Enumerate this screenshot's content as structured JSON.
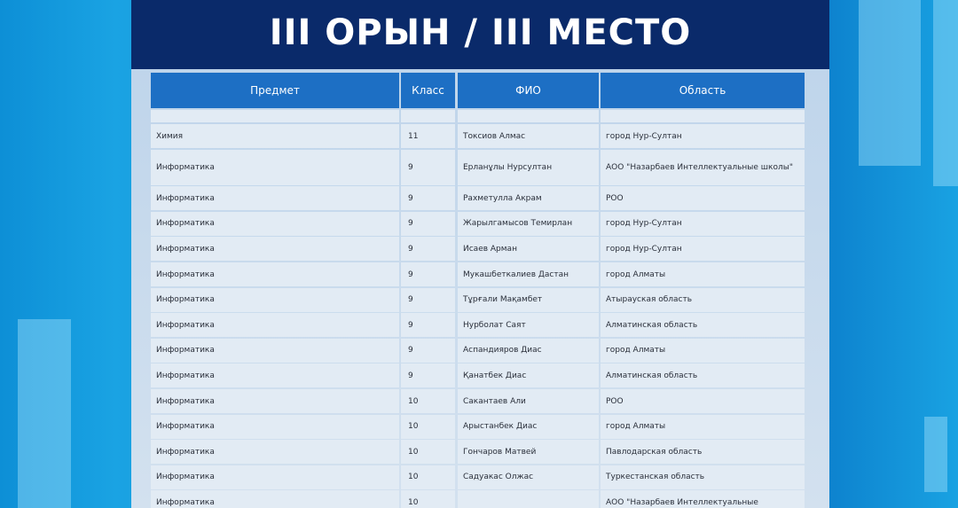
{
  "header": {
    "title": "III ОРЫН / III МЕСТО"
  },
  "table": {
    "columns": [
      "Предмет",
      "Класс",
      "ФИО",
      "Область"
    ],
    "rows": [
      [
        "Химия",
        "11",
        "Токсиов Алмас",
        "город Нур-Султан"
      ],
      [
        "Информатика",
        "9",
        "Ерланұлы Нурсултан",
        "АОО \"Назарбаев Интеллектуальные школы\""
      ],
      [
        "Информатика",
        "9",
        "Рахметулла Акрам",
        "РОО"
      ],
      [
        "Информатика",
        "9",
        "Жарылгамысов Темирлан",
        "город Нур-Султан"
      ],
      [
        "Информатика",
        "9",
        "Исаев Арман",
        "город Нур-Султан"
      ],
      [
        "Информатика",
        "9",
        "Мукашбеткалиев Дастан",
        "город Алматы"
      ],
      [
        "Информатика",
        "9",
        "Тұрғали Мақамбет",
        "Атырауская область"
      ],
      [
        "Информатика",
        "9",
        "Нурболат Саят",
        "Алматинская область"
      ],
      [
        "Информатика",
        "9",
        "Аспандияров Диас",
        "город Алматы"
      ],
      [
        "Информатика",
        "9",
        "Қанатбек Диас",
        "Алматинская область"
      ],
      [
        "Информатика",
        "10",
        "Сакантаев Али",
        "РОО"
      ],
      [
        "Информатика",
        "10",
        "Арыстанбек Диас",
        "город Алматы"
      ],
      [
        "Информатика",
        "10",
        "Гончаров Матвей",
        "Павлодарская область"
      ],
      [
        "Информатика",
        "10",
        "Садуакас Олжас",
        "Туркестанская область"
      ],
      [
        "Информатика",
        "10",
        null,
        "АОО \"Назарбаев Интеллектуальные"
      ]
    ]
  }
}
